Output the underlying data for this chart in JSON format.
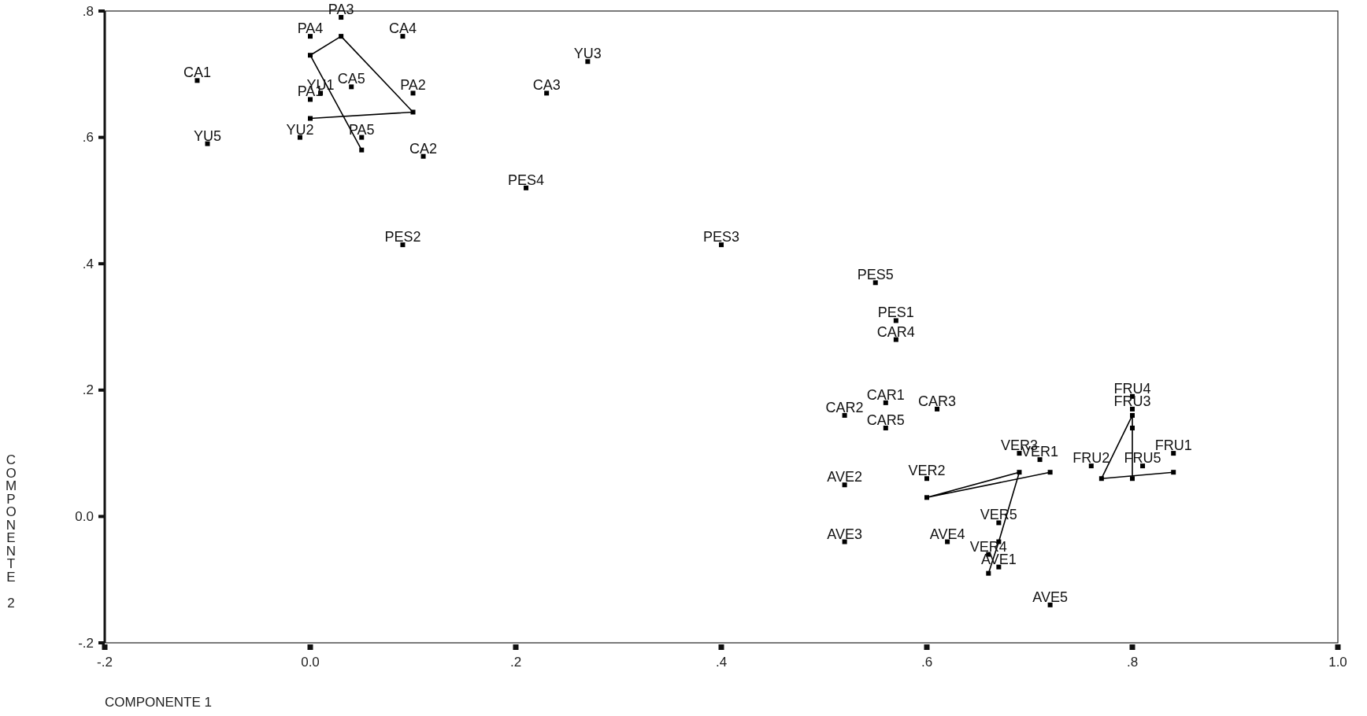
{
  "chart_data": {
    "type": "scatter",
    "xlabel": "COMPONENTE 1",
    "ylabel": "COMPONENTE 2",
    "xlim": [
      -0.2,
      1.0
    ],
    "ylim": [
      -0.2,
      0.8
    ],
    "xticks": [
      {
        "value": -0.2,
        "label": "-.2"
      },
      {
        "value": 0,
        "label": "0.0"
      },
      {
        "value": 0.2,
        "label": ".2"
      },
      {
        "value": 0.4,
        "label": ".4"
      },
      {
        "value": 0.6,
        "label": ".6"
      },
      {
        "value": 0.8,
        "label": ".8"
      },
      {
        "value": 1.0,
        "label": "1.0"
      }
    ],
    "yticks": [
      {
        "value": -0.2,
        "label": "-.2"
      },
      {
        "value": 0,
        "label": "0.0"
      },
      {
        "value": 0.2,
        "label": ".2"
      },
      {
        "value": 0.4,
        "label": ".4"
      },
      {
        "value": 0.6,
        "label": ".6"
      },
      {
        "value": 0.8,
        "label": ".8"
      }
    ],
    "grid": false,
    "marker": "square",
    "line_style": "solid",
    "series": [
      {
        "color": "#000000",
        "x": [
          -0.11,
          -0.1,
          0.03,
          0.0,
          0.09,
          0.27,
          0.04,
          0.1,
          0.23,
          0.0,
          0.01,
          -0.01,
          0.05,
          0.11,
          0.21,
          0.09,
          0.4,
          0.55,
          0.57,
          0.57,
          0.56,
          0.61,
          0.52,
          0.56,
          0.69,
          0.71,
          0.8,
          0.8,
          0.76,
          0.81,
          0.84,
          0.6,
          0.52,
          0.67,
          0.52,
          0.62,
          0.66,
          0.67,
          0.72
        ],
        "values": [
          0.69,
          0.59,
          0.79,
          0.76,
          0.76,
          0.72,
          0.68,
          0.67,
          0.67,
          0.66,
          0.67,
          0.6,
          0.6,
          0.57,
          0.52,
          0.43,
          0.43,
          0.37,
          0.31,
          0.28,
          0.18,
          0.17,
          0.16,
          0.14,
          0.1,
          0.09,
          0.19,
          0.17,
          0.08,
          0.08,
          0.1,
          0.06,
          0.05,
          -0.01,
          -0.04,
          -0.04,
          -0.06,
          -0.08,
          -0.14
        ]
      },
      {
        "type": "line",
        "color": "#000000",
        "x": [
          0.0,
          0.1,
          0.03,
          0.0,
          0.05
        ],
        "values": [
          0.63,
          0.64,
          0.76,
          0.73,
          0.58
        ]
      },
      {
        "type": "line",
        "color": "#000000",
        "x": [
          0.72,
          0.6,
          0.69,
          0.67,
          0.66
        ],
        "values": [
          0.07,
          0.03,
          0.07,
          -0.04,
          -0.09
        ]
      },
      {
        "type": "line",
        "color": "#000000",
        "x": [
          0.8,
          0.8,
          0.8,
          0.77,
          0.84
        ],
        "values": [
          0.06,
          0.14,
          0.16,
          0.06,
          0.07
        ]
      }
    ],
    "annotations": [
      {
        "text": "CA1",
        "x": -0.11,
        "y": 0.69
      },
      {
        "text": "YU5",
        "x": -0.1,
        "y": 0.59
      },
      {
        "text": "PA3",
        "x": 0.03,
        "y": 0.79
      },
      {
        "text": "PA4",
        "x": 0.0,
        "y": 0.76
      },
      {
        "text": "CA4",
        "x": 0.09,
        "y": 0.76
      },
      {
        "text": "YU3",
        "x": 0.27,
        "y": 0.72
      },
      {
        "text": "CA5",
        "x": 0.04,
        "y": 0.68
      },
      {
        "text": "PA2",
        "x": 0.1,
        "y": 0.67
      },
      {
        "text": "CA3",
        "x": 0.23,
        "y": 0.67
      },
      {
        "text": "PA1",
        "x": 0.0,
        "y": 0.66
      },
      {
        "text": "YU1",
        "x": 0.01,
        "y": 0.67
      },
      {
        "text": "YU2",
        "x": -0.01,
        "y": 0.6
      },
      {
        "text": "PA5",
        "x": 0.05,
        "y": 0.6
      },
      {
        "text": "CA2",
        "x": 0.11,
        "y": 0.57
      },
      {
        "text": "PES4",
        "x": 0.21,
        "y": 0.52
      },
      {
        "text": "PES2",
        "x": 0.09,
        "y": 0.43
      },
      {
        "text": "PES3",
        "x": 0.4,
        "y": 0.43
      },
      {
        "text": "PES5",
        "x": 0.55,
        "y": 0.37
      },
      {
        "text": "PES1",
        "x": 0.57,
        "y": 0.31
      },
      {
        "text": "CAR4",
        "x": 0.57,
        "y": 0.28
      },
      {
        "text": "CAR1",
        "x": 0.56,
        "y": 0.18
      },
      {
        "text": "CAR3",
        "x": 0.61,
        "y": 0.17
      },
      {
        "text": "CAR2",
        "x": 0.52,
        "y": 0.16
      },
      {
        "text": "CAR5",
        "x": 0.56,
        "y": 0.14
      },
      {
        "text": "VER3",
        "x": 0.69,
        "y": 0.1
      },
      {
        "text": "VER1",
        "x": 0.71,
        "y": 0.09
      },
      {
        "text": "FRU4",
        "x": 0.8,
        "y": 0.19
      },
      {
        "text": "FRU3",
        "x": 0.8,
        "y": 0.17
      },
      {
        "text": "FRU2",
        "x": 0.76,
        "y": 0.08
      },
      {
        "text": "FRU5",
        "x": 0.81,
        "y": 0.08
      },
      {
        "text": "FRU1",
        "x": 0.84,
        "y": 0.1
      },
      {
        "text": "VER2",
        "x": 0.6,
        "y": 0.06
      },
      {
        "text": "AVE2",
        "x": 0.52,
        "y": 0.05
      },
      {
        "text": "VER5",
        "x": 0.67,
        "y": -0.01
      },
      {
        "text": "AVE3",
        "x": 0.52,
        "y": -0.04
      },
      {
        "text": "AVE4",
        "x": 0.62,
        "y": -0.04
      },
      {
        "text": "VER4",
        "x": 0.66,
        "y": -0.06
      },
      {
        "text": "AVE1",
        "x": 0.67,
        "y": -0.08
      },
      {
        "text": "AVE5",
        "x": 0.72,
        "y": -0.14
      }
    ]
  }
}
